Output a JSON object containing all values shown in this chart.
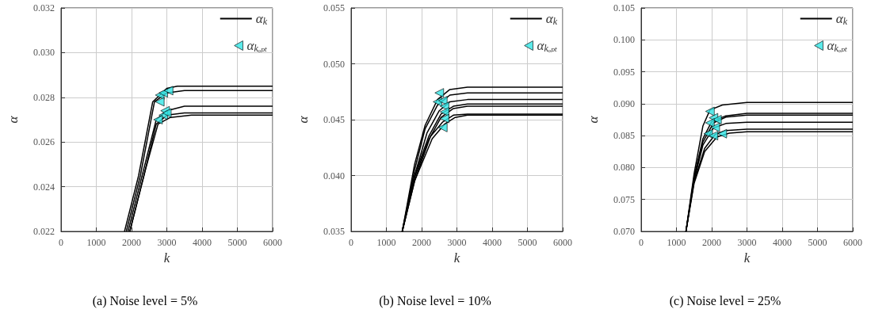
{
  "chart_data": [
    {
      "type": "line",
      "title": "(a) Noise level = 5%",
      "xlabel": "k",
      "ylabel": "α",
      "xlim": [
        0,
        6000
      ],
      "xticks": [
        0,
        1000,
        2000,
        3000,
        4000,
        5000,
        6000
      ],
      "ylim": [
        0.022,
        0.032
      ],
      "yticks": [
        0.022,
        0.024,
        0.026,
        0.028,
        {
          "value": 0.03,
          "label": "0.030"
        },
        0.032
      ],
      "grid": true,
      "legend": "top right",
      "series": [
        {
          "name": "α$_{k}$",
          "color": "#000000",
          "x": [
            1800,
            2200,
            2600,
            3000,
            3300,
            6000
          ],
          "values": [
            0.022,
            0.0245,
            0.0278,
            0.0284,
            0.0285,
            0.0285
          ]
        },
        {
          "color": "#000000",
          "x": [
            1850,
            2250,
            2650,
            3000,
            3500,
            6000
          ],
          "values": [
            0.022,
            0.0245,
            0.0278,
            0.0282,
            0.0283,
            0.0283
          ]
        },
        {
          "color": "#000000",
          "x": [
            1900,
            2300,
            2700,
            3000,
            3500,
            6000
          ],
          "values": [
            0.022,
            0.0245,
            0.027,
            0.0274,
            0.0276,
            0.0276
          ]
        },
        {
          "color": "#000000",
          "x": [
            1950,
            2350,
            2700,
            3000,
            3500,
            6000
          ],
          "values": [
            0.022,
            0.0245,
            0.0268,
            0.0272,
            0.0273,
            0.0273
          ]
        },
        {
          "color": "#000000",
          "x": [
            1950,
            2400,
            2750,
            3100,
            3700,
            6000
          ],
          "values": [
            0.022,
            0.0248,
            0.0268,
            0.0271,
            0.0272,
            0.0272
          ]
        },
        {
          "name": "α$_{kₒₚₜ}$",
          "type": "scatter",
          "marker": "triangle",
          "color": "#33e6e6",
          "x": [
            2800,
            2900,
            3050,
            2800,
            2950,
            2900,
            3000,
            2750
          ],
          "values": [
            0.0281,
            0.0282,
            0.0283,
            0.0278,
            0.0274,
            0.0272,
            0.0273,
            0.027
          ]
        }
      ]
    },
    {
      "type": "line",
      "title": "(b) Noise level = 10%",
      "xlabel": "k",
      "ylabel": "α",
      "xlim": [
        0,
        6000
      ],
      "xticks": [
        0,
        1000,
        2000,
        3000,
        4000,
        5000,
        6000
      ],
      "ylim": [
        0.035,
        0.055
      ],
      "yticks": [
        0.035,
        {
          "value": 0.04,
          "label": "0.040"
        },
        0.045,
        {
          "value": 0.05,
          "label": "0.050"
        },
        0.055
      ],
      "grid": true,
      "legend": "top right",
      "series": [
        {
          "name": "α$_{k}$",
          "color": "#000000",
          "x": [
            1450,
            1800,
            2100,
            2450,
            2800,
            3300,
            6000
          ],
          "values": [
            0.035,
            0.041,
            0.0445,
            0.0468,
            0.0477,
            0.0479,
            0.0479
          ]
        },
        {
          "color": "#000000",
          "x": [
            1450,
            1800,
            2100,
            2450,
            2800,
            3300,
            6000
          ],
          "values": [
            0.035,
            0.0405,
            0.0442,
            0.0463,
            0.0472,
            0.0474,
            0.0474
          ]
        },
        {
          "color": "#000000",
          "x": [
            1450,
            1800,
            2150,
            2500,
            2800,
            3300,
            6000
          ],
          "values": [
            0.035,
            0.04,
            0.0438,
            0.0458,
            0.0466,
            0.0468,
            0.0468
          ]
        },
        {
          "color": "#000000",
          "x": [
            1450,
            1800,
            2200,
            2550,
            2900,
            3300,
            6000
          ],
          "values": [
            0.035,
            0.04,
            0.0435,
            0.0455,
            0.0462,
            0.0464,
            0.0464
          ]
        },
        {
          "color": "#000000",
          "x": [
            1450,
            1800,
            2200,
            2550,
            2900,
            3300,
            6000
          ],
          "values": [
            0.035,
            0.0398,
            0.0432,
            0.0452,
            0.046,
            0.0462,
            0.0462
          ]
        },
        {
          "color": "#000000",
          "x": [
            1450,
            1800,
            2250,
            2600,
            2900,
            3300,
            6000
          ],
          "values": [
            0.035,
            0.0395,
            0.0435,
            0.0448,
            0.0454,
            0.0455,
            0.0455
          ]
        },
        {
          "color": "#000000",
          "x": [
            1450,
            1800,
            2300,
            2650,
            2950,
            3300,
            6000
          ],
          "values": [
            0.035,
            0.0395,
            0.0433,
            0.0446,
            0.0452,
            0.0454,
            0.0454
          ]
        },
        {
          "name": "α$_{kₒₚₜ}$",
          "type": "scatter",
          "marker": "triangle",
          "color": "#33e6e6",
          "x": [
            2500,
            2450,
            2600,
            2650,
            2650,
            2650,
            2600
          ],
          "values": [
            0.0474,
            0.0466,
            0.0467,
            0.0462,
            0.0457,
            0.0451,
            0.0443
          ]
        }
      ]
    },
    {
      "type": "line",
      "title": "(c) Noise level = 25%",
      "xlabel": "k",
      "ylabel": "α",
      "xlim": [
        0,
        6000
      ],
      "xticks": [
        0,
        1000,
        2000,
        3000,
        4000,
        5000,
        6000
      ],
      "ylim": [
        0.07,
        0.105
      ],
      "yticks": [
        {
          "value": 0.07,
          "label": "0.070"
        },
        0.075,
        {
          "value": 0.08,
          "label": "0.080"
        },
        0.085,
        {
          "value": 0.09,
          "label": "0.090"
        },
        0.095,
        {
          "value": 0.1,
          "label": "0.100"
        },
        0.105
      ],
      "grid": true,
      "legend": "top right",
      "series": [
        {
          "name": "α$_{k}$",
          "color": "#000000",
          "x": [
            1270,
            1500,
            1750,
            1950,
            2300,
            3000,
            6000
          ],
          "values": [
            0.07,
            0.079,
            0.0865,
            0.089,
            0.0898,
            0.0902,
            0.0902
          ]
        },
        {
          "color": "#000000",
          "x": [
            1270,
            1500,
            1750,
            2000,
            2400,
            3000,
            6000
          ],
          "values": [
            0.07,
            0.0785,
            0.0845,
            0.0872,
            0.0881,
            0.0885,
            0.0885
          ]
        },
        {
          "color": "#000000",
          "x": [
            1270,
            1500,
            1750,
            2050,
            2400,
            3000,
            6000
          ],
          "values": [
            0.07,
            0.0782,
            0.084,
            0.087,
            0.0879,
            0.0882,
            0.0882
          ]
        },
        {
          "color": "#000000",
          "x": [
            1270,
            1500,
            1750,
            2050,
            2400,
            3000,
            6000
          ],
          "values": [
            0.07,
            0.078,
            0.0835,
            0.0862,
            0.0869,
            0.0871,
            0.0871
          ]
        },
        {
          "color": "#000000",
          "x": [
            1270,
            1500,
            1800,
            2100,
            2400,
            3000,
            6000
          ],
          "values": [
            0.07,
            0.0778,
            0.083,
            0.0852,
            0.0858,
            0.086,
            0.086
          ]
        },
        {
          "color": "#000000",
          "x": [
            1270,
            1500,
            1800,
            2150,
            2500,
            3000,
            6000
          ],
          "values": [
            0.07,
            0.0775,
            0.0825,
            0.0848,
            0.0854,
            0.0856,
            0.0856
          ]
        },
        {
          "name": "α$_{kₒₚₜ}$",
          "type": "scatter",
          "marker": "triangle",
          "color": "#33e6e6",
          "x": [
            1950,
            2050,
            2150,
            1950,
            2100,
            1900,
            2050,
            2300
          ],
          "values": [
            0.0888,
            0.0878,
            0.0875,
            0.087,
            0.0863,
            0.0853,
            0.085,
            0.0853
          ]
        }
      ]
    }
  ]
}
